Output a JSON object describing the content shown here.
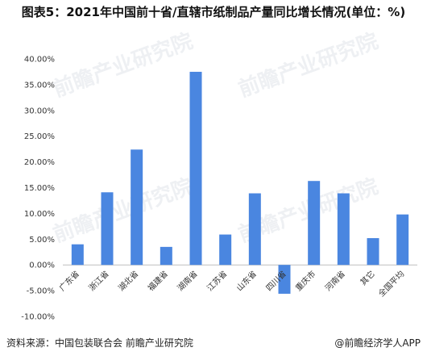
{
  "title": "图表5：2021年中国前十省/直辖市纸制品产量同比增长情况(单位：%)",
  "watermark": "前瞻产业研究院",
  "footer": {
    "source": "资料来源：中国包装联合会 前瞻产业研究院",
    "brand": "@前瞻经济学人APP"
  },
  "colors": {
    "bar": "#4a86e0",
    "axis": "#bfbfbf"
  },
  "chart_data": {
    "type": "bar",
    "categories": [
      "广东省",
      "浙江省",
      "湖北省",
      "福建省",
      "湖南省",
      "江苏省",
      "山东省",
      "四川省",
      "重庆市",
      "河南省",
      "其它",
      "全国平均"
    ],
    "values": [
      4.0,
      14.1,
      22.4,
      3.5,
      37.5,
      5.9,
      13.9,
      -5.6,
      16.3,
      13.9,
      5.2,
      9.8
    ],
    "ylim": [
      -10,
      40
    ],
    "yticks": [
      "-10.00%",
      "-5.00%",
      "0.00%",
      "5.00%",
      "10.00%",
      "15.00%",
      "20.00%",
      "25.00%",
      "30.00%",
      "35.00%",
      "40.00%"
    ],
    "grid": false,
    "legend": "none"
  }
}
